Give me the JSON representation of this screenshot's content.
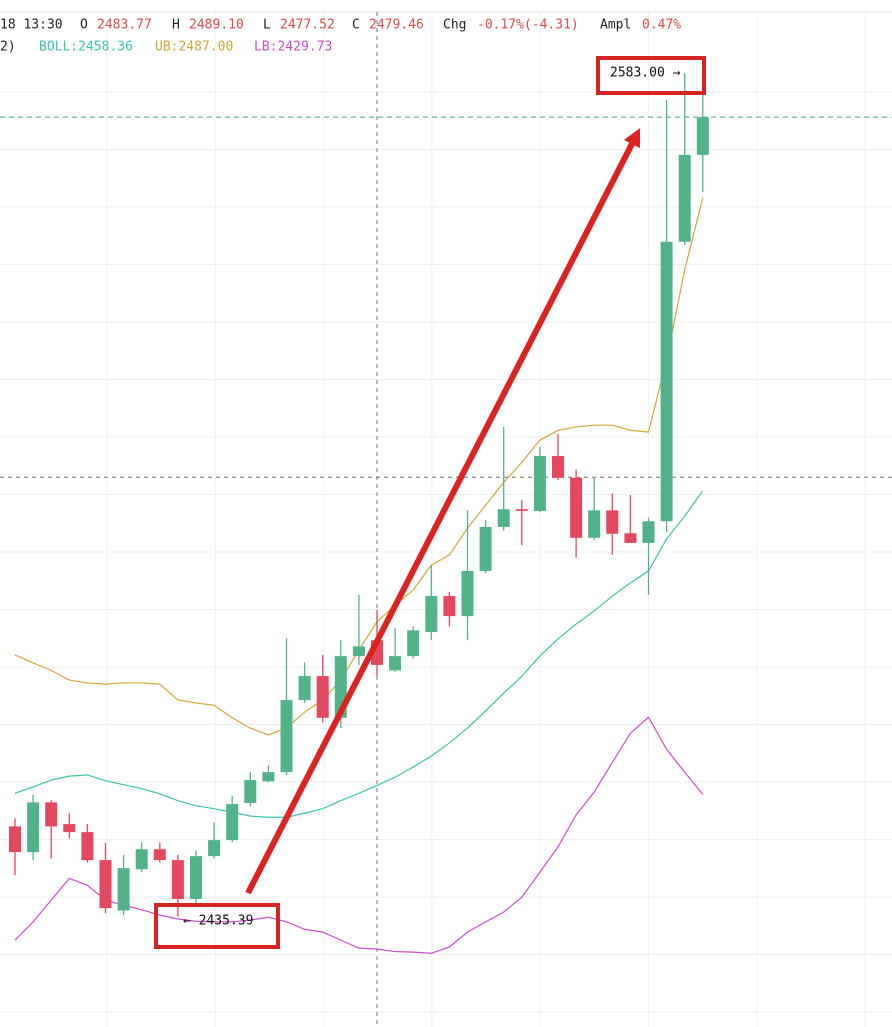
{
  "header": {
    "time": "18 13:30",
    "fields": [
      {
        "label": "O",
        "value": "2483.77"
      },
      {
        "label": "H",
        "value": "2489.10"
      },
      {
        "label": "L",
        "value": "2477.52"
      },
      {
        "label": "C",
        "value": "2479.46"
      },
      {
        "label": "Chg",
        "value": "-0.17%(-4.31)"
      },
      {
        "label": "Ampl",
        "value": "0.47%"
      }
    ],
    "indicator_prefix": "2)"
  },
  "chart_data": {
    "type": "candlestick",
    "ylim": [
      2416.1,
      2593.7
    ],
    "up_color": "#52b38a",
    "down_color": "#e3485f",
    "candles": [
      {
        "open": 2451.2,
        "high": 2452.6,
        "low": 2442.7,
        "close": 2446.7
      },
      {
        "open": 2446.7,
        "high": 2456.7,
        "low": 2445.3,
        "close": 2455.4
      },
      {
        "open": 2455.4,
        "high": 2455.8,
        "low": 2445.6,
        "close": 2451.2
      },
      {
        "open": 2451.6,
        "high": 2453.5,
        "low": 2449.1,
        "close": 2450.2
      },
      {
        "open": 2450.2,
        "high": 2451.6,
        "low": 2444.9,
        "close": 2445.3
      },
      {
        "open": 2445.3,
        "high": 2448.3,
        "low": 2436.0,
        "close": 2436.9
      },
      {
        "open": 2436.5,
        "high": 2446.2,
        "low": 2435.7,
        "close": 2443.9
      },
      {
        "open": 2443.7,
        "high": 2448.4,
        "low": 2443.2,
        "close": 2447.2
      },
      {
        "open": 2447.2,
        "high": 2448.4,
        "low": 2444.9,
        "close": 2445.3
      },
      {
        "open": 2445.3,
        "high": 2446.2,
        "low": 2435.39,
        "close": 2438.5
      },
      {
        "open": 2438.5,
        "high": 2447.0,
        "low": 2437.8,
        "close": 2446.0
      },
      {
        "open": 2446.0,
        "high": 2451.9,
        "low": 2445.6,
        "close": 2448.8
      },
      {
        "open": 2448.8,
        "high": 2456.5,
        "low": 2448.4,
        "close": 2455.1
      },
      {
        "open": 2455.3,
        "high": 2460.7,
        "low": 2454.7,
        "close": 2459.3
      },
      {
        "open": 2459.1,
        "high": 2461.9,
        "low": 2458.9,
        "close": 2460.7
      },
      {
        "open": 2460.7,
        "high": 2484.1,
        "low": 2460.2,
        "close": 2473.3
      },
      {
        "open": 2473.3,
        "high": 2479.9,
        "low": 2472.8,
        "close": 2477.5
      },
      {
        "open": 2477.5,
        "high": 2481.2,
        "low": 2469.4,
        "close": 2470.2
      },
      {
        "open": 2470.2,
        "high": 2483.8,
        "low": 2468.4,
        "close": 2481.0
      },
      {
        "open": 2481.0,
        "high": 2491.7,
        "low": 2479.4,
        "close": 2482.7
      },
      {
        "open": 2483.77,
        "high": 2489.1,
        "low": 2477.52,
        "close": 2479.46
      },
      {
        "open": 2478.5,
        "high": 2485.9,
        "low": 2478.2,
        "close": 2481.0
      },
      {
        "open": 2481.0,
        "high": 2486.2,
        "low": 2480.6,
        "close": 2485.5
      },
      {
        "open": 2485.2,
        "high": 2496.9,
        "low": 2483.8,
        "close": 2491.5
      },
      {
        "open": 2491.5,
        "high": 2492.2,
        "low": 2486.2,
        "close": 2488.0
      },
      {
        "open": 2488.0,
        "high": 2506.5,
        "low": 2483.8,
        "close": 2495.9
      },
      {
        "open": 2495.9,
        "high": 2504.8,
        "low": 2495.5,
        "close": 2503.6
      },
      {
        "open": 2503.6,
        "high": 2521.1,
        "low": 2503.0,
        "close": 2506.7
      },
      {
        "open": 2506.7,
        "high": 2508.3,
        "low": 2500.4,
        "close": 2506.4
      },
      {
        "open": 2506.4,
        "high": 2517.6,
        "low": 2506.2,
        "close": 2516.0
      },
      {
        "open": 2516.0,
        "high": 2519.9,
        "low": 2511.8,
        "close": 2512.2
      },
      {
        "open": 2512.2,
        "high": 2513.6,
        "low": 2498.2,
        "close": 2501.7
      },
      {
        "open": 2501.7,
        "high": 2512.3,
        "low": 2501.3,
        "close": 2506.5
      },
      {
        "open": 2506.5,
        "high": 2509.5,
        "low": 2498.7,
        "close": 2502.4
      },
      {
        "open": 2502.5,
        "high": 2509.2,
        "low": 2501.3,
        "close": 2500.8
      },
      {
        "open": 2500.8,
        "high": 2505.2,
        "low": 2491.7,
        "close": 2504.6
      },
      {
        "open": 2504.6,
        "high": 2578.3,
        "low": 2502.7,
        "close": 2553.5
      },
      {
        "open": 2553.5,
        "high": 2583.0,
        "low": 2552.9,
        "close": 2568.7
      },
      {
        "open": 2568.7,
        "high": 2579.2,
        "low": 2562.2,
        "close": 2575.3
      }
    ],
    "series": [
      {
        "name": "BOLL:2458.36",
        "color": "#3cc4ad",
        "values": [
          2457.0,
          2458.1,
          2459.3,
          2460.0,
          2460.2,
          2459.2,
          2458.5,
          2457.8,
          2456.9,
          2455.7,
          2454.8,
          2454.3,
          2453.7,
          2453.0,
          2452.8,
          2452.8,
          2453.5,
          2454.3,
          2455.7,
          2457.0,
          2458.36,
          2459.8,
          2461.6,
          2463.5,
          2465.8,
          2468.4,
          2471.4,
          2474.5,
          2477.5,
          2481.0,
          2484.0,
          2486.6,
          2488.9,
          2491.5,
          2493.8,
          2495.9,
          2501.5,
          2505.5,
          2509.9
        ]
      },
      {
        "name": "UB:2487.00",
        "color": "#d2a638",
        "values": [
          2481.2,
          2479.8,
          2478.5,
          2476.8,
          2476.3,
          2476.1,
          2476.3,
          2476.3,
          2476.1,
          2473.3,
          2472.8,
          2472.4,
          2470.2,
          2468.4,
          2467.2,
          2468.4,
          2471.2,
          2473.3,
          2476.8,
          2482.1,
          2487.0,
          2489.9,
          2492.6,
          2496.9,
          2498.7,
          2503.4,
          2507.4,
          2511.4,
          2514.9,
          2518.8,
          2520.5,
          2521.1,
          2521.4,
          2521.4,
          2520.5,
          2520.2,
          2532.8,
          2548.6,
          2561.2
        ]
      },
      {
        "name": "LB:2429.73",
        "color": "#cc4dcc",
        "values": [
          2431.3,
          2434.5,
          2438.3,
          2442.1,
          2440.9,
          2438.3,
          2437.4,
          2436.6,
          2435.7,
          2435.0,
          2434.6,
          2434.5,
          2434.5,
          2434.8,
          2435.3,
          2434.5,
          2433.2,
          2432.7,
          2431.3,
          2429.9,
          2429.73,
          2429.3,
          2429.2,
          2429.0,
          2430.1,
          2432.7,
          2434.5,
          2436.2,
          2438.8,
          2443.2,
          2447.6,
          2453.2,
          2457.2,
          2462.4,
          2467.5,
          2470.3,
          2464.7,
          2460.7,
          2456.8
        ]
      }
    ],
    "price_line": 2575.3,
    "crosshair": {
      "index": 20,
      "price": 2512.3
    },
    "annotations": [
      {
        "text": "2583.00 →",
        "value": 2583.0,
        "index": 37
      },
      {
        "text": "← 2435.39",
        "value": 2435.39,
        "index": 9
      }
    ]
  }
}
